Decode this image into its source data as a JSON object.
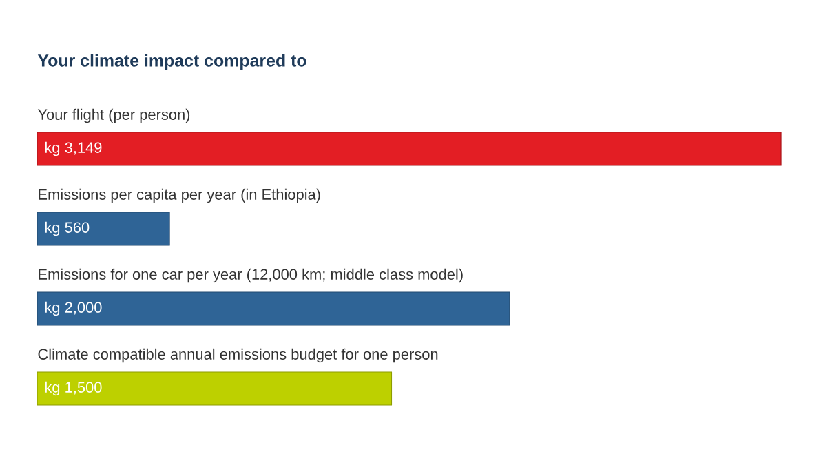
{
  "chart_data": {
    "type": "bar",
    "orientation": "horizontal",
    "title": "Your climate impact compared to",
    "categories": [
      "Your flight (per person)",
      "Emissions per capita per year (in Ethiopia)",
      "Emissions for one car per year (12,000 km; middle class model)",
      "Climate compatible annual emissions budget for one person"
    ],
    "values": [
      3149,
      560,
      2000,
      1500
    ],
    "colors": [
      "#e31e24",
      "#2f6496",
      "#2f6496",
      "#bdd000"
    ],
    "value_labels": [
      "kg 3,149",
      "kg 560",
      "kg 2,000",
      "kg 1,500"
    ]
  }
}
